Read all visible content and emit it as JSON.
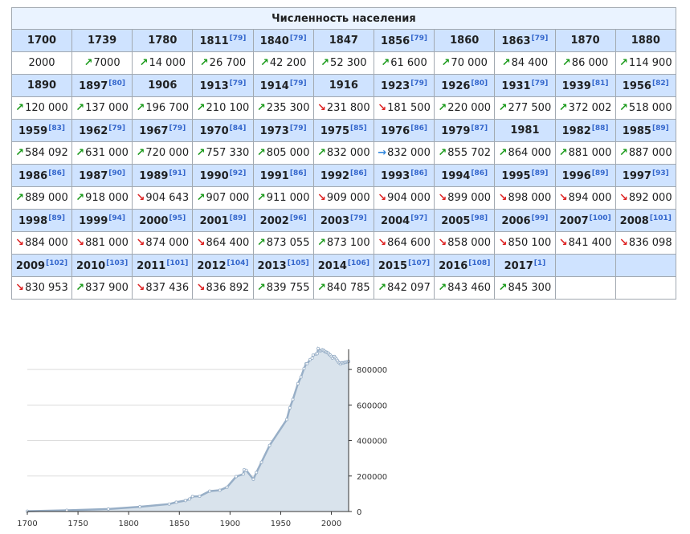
{
  "table": {
    "title": "Численность населения",
    "entries": [
      {
        "year": "1700",
        "ref": "",
        "value": "2000",
        "trend": ""
      },
      {
        "year": "1739",
        "ref": "",
        "value": "7000",
        "trend": "up"
      },
      {
        "year": "1780",
        "ref": "",
        "value": "14 000",
        "trend": "up"
      },
      {
        "year": "1811",
        "ref": "[79]",
        "value": "26 700",
        "trend": "up"
      },
      {
        "year": "1840",
        "ref": "[79]",
        "value": "42 200",
        "trend": "up"
      },
      {
        "year": "1847",
        "ref": "",
        "value": "52 300",
        "trend": "up"
      },
      {
        "year": "1856",
        "ref": "[79]",
        "value": "61 600",
        "trend": "up"
      },
      {
        "year": "1860",
        "ref": "",
        "value": "70 000",
        "trend": "up"
      },
      {
        "year": "1863",
        "ref": "[79]",
        "value": "84 400",
        "trend": "up"
      },
      {
        "year": "1870",
        "ref": "",
        "value": "86 000",
        "trend": "up"
      },
      {
        "year": "1880",
        "ref": "",
        "value": "114 900",
        "trend": "up"
      },
      {
        "year": "1890",
        "ref": "",
        "value": "120 000",
        "trend": "up"
      },
      {
        "year": "1897",
        "ref": "[80]",
        "value": "137 000",
        "trend": "up"
      },
      {
        "year": "1906",
        "ref": "",
        "value": "196 700",
        "trend": "up"
      },
      {
        "year": "1913",
        "ref": "[79]",
        "value": "210 100",
        "trend": "up"
      },
      {
        "year": "1914",
        "ref": "[79]",
        "value": "235 300",
        "trend": "up"
      },
      {
        "year": "1916",
        "ref": "",
        "value": "231 800",
        "trend": "down"
      },
      {
        "year": "1923",
        "ref": "[79]",
        "value": "181 500",
        "trend": "down"
      },
      {
        "year": "1926",
        "ref": "[80]",
        "value": "220 000",
        "trend": "up"
      },
      {
        "year": "1931",
        "ref": "[79]",
        "value": "277 500",
        "trend": "up"
      },
      {
        "year": "1939",
        "ref": "[81]",
        "value": "372 002",
        "trend": "up"
      },
      {
        "year": "1956",
        "ref": "[82]",
        "value": "518 000",
        "trend": "up"
      },
      {
        "year": "1959",
        "ref": "[83]",
        "value": "584 092",
        "trend": "up"
      },
      {
        "year": "1962",
        "ref": "[79]",
        "value": "631 000",
        "trend": "up"
      },
      {
        "year": "1967",
        "ref": "[79]",
        "value": "720 000",
        "trend": "up"
      },
      {
        "year": "1970",
        "ref": "[84]",
        "value": "757 330",
        "trend": "up"
      },
      {
        "year": "1973",
        "ref": "[79]",
        "value": "805 000",
        "trend": "up"
      },
      {
        "year": "1975",
        "ref": "[85]",
        "value": "832 000",
        "trend": "up"
      },
      {
        "year": "1976",
        "ref": "[86]",
        "value": "832 000",
        "trend": "flat"
      },
      {
        "year": "1979",
        "ref": "[87]",
        "value": "855 702",
        "trend": "up"
      },
      {
        "year": "1981",
        "ref": "",
        "value": "864 000",
        "trend": "up"
      },
      {
        "year": "1982",
        "ref": "[88]",
        "value": "881 000",
        "trend": "up"
      },
      {
        "year": "1985",
        "ref": "[89]",
        "value": "887 000",
        "trend": "up"
      },
      {
        "year": "1986",
        "ref": "[86]",
        "value": "889 000",
        "trend": "up"
      },
      {
        "year": "1987",
        "ref": "[90]",
        "value": "918 000",
        "trend": "up"
      },
      {
        "year": "1989",
        "ref": "[91]",
        "value": "904 643",
        "trend": "down"
      },
      {
        "year": "1990",
        "ref": "[92]",
        "value": "907 000",
        "trend": "up"
      },
      {
        "year": "1991",
        "ref": "[86]",
        "value": "911 000",
        "trend": "up"
      },
      {
        "year": "1992",
        "ref": "[86]",
        "value": "909 000",
        "trend": "down"
      },
      {
        "year": "1993",
        "ref": "[86]",
        "value": "904 000",
        "trend": "down"
      },
      {
        "year": "1994",
        "ref": "[86]",
        "value": "899 000",
        "trend": "down"
      },
      {
        "year": "1995",
        "ref": "[89]",
        "value": "898 000",
        "trend": "down"
      },
      {
        "year": "1996",
        "ref": "[89]",
        "value": "894 000",
        "trend": "down"
      },
      {
        "year": "1997",
        "ref": "[93]",
        "value": "892 000",
        "trend": "down"
      },
      {
        "year": "1998",
        "ref": "[89]",
        "value": "884 000",
        "trend": "down"
      },
      {
        "year": "1999",
        "ref": "[94]",
        "value": "881 000",
        "trend": "down"
      },
      {
        "year": "2000",
        "ref": "[95]",
        "value": "874 000",
        "trend": "down"
      },
      {
        "year": "2001",
        "ref": "[89]",
        "value": "864 400",
        "trend": "down"
      },
      {
        "year": "2002",
        "ref": "[96]",
        "value": "873 055",
        "trend": "up"
      },
      {
        "year": "2003",
        "ref": "[79]",
        "value": "873 100",
        "trend": "up"
      },
      {
        "year": "2004",
        "ref": "[97]",
        "value": "864 600",
        "trend": "down"
      },
      {
        "year": "2005",
        "ref": "[98]",
        "value": "858 000",
        "trend": "down"
      },
      {
        "year": "2006",
        "ref": "[99]",
        "value": "850 100",
        "trend": "down"
      },
      {
        "year": "2007",
        "ref": "[100]",
        "value": "841 400",
        "trend": "down"
      },
      {
        "year": "2008",
        "ref": "[101]",
        "value": "836 098",
        "trend": "down"
      },
      {
        "year": "2009",
        "ref": "[102]",
        "value": "830 953",
        "trend": "down"
      },
      {
        "year": "2010",
        "ref": "[103]",
        "value": "837 900",
        "trend": "up"
      },
      {
        "year": "2011",
        "ref": "[101]",
        "value": "837 436",
        "trend": "down"
      },
      {
        "year": "2012",
        "ref": "[104]",
        "value": "836 892",
        "trend": "down"
      },
      {
        "year": "2013",
        "ref": "[105]",
        "value": "839 755",
        "trend": "up"
      },
      {
        "year": "2014",
        "ref": "[106]",
        "value": "840 785",
        "trend": "up"
      },
      {
        "year": "2015",
        "ref": "[107]",
        "value": "842 097",
        "trend": "up"
      },
      {
        "year": "2016",
        "ref": "[108]",
        "value": "843 460",
        "trend": "up"
      },
      {
        "year": "2017",
        "ref": "[1]",
        "value": "845 300",
        "trend": "up"
      }
    ],
    "trend_glyphs": {
      "up": "↗",
      "down": "↘",
      "flat": "→"
    },
    "colors": {
      "up": "#1a9a1a",
      "down": "#dd2222",
      "flat": "#3388dd",
      "header_bg": "#cfe3ff",
      "title_bg": "#eaf3ff",
      "border": "#a2a9b1"
    }
  },
  "chart_data": {
    "type": "area",
    "x": [
      1700,
      1739,
      1780,
      1811,
      1840,
      1847,
      1856,
      1860,
      1863,
      1870,
      1880,
      1890,
      1897,
      1906,
      1913,
      1914,
      1916,
      1923,
      1926,
      1931,
      1939,
      1956,
      1959,
      1962,
      1967,
      1970,
      1973,
      1975,
      1976,
      1979,
      1981,
      1982,
      1985,
      1986,
      1987,
      1989,
      1990,
      1991,
      1992,
      1993,
      1994,
      1995,
      1996,
      1997,
      1998,
      1999,
      2000,
      2001,
      2002,
      2003,
      2004,
      2005,
      2006,
      2007,
      2008,
      2009,
      2010,
      2011,
      2012,
      2013,
      2014,
      2015,
      2016,
      2017
    ],
    "y": [
      2000,
      7000,
      14000,
      26700,
      42200,
      52300,
      61600,
      70000,
      84400,
      86000,
      114900,
      120000,
      137000,
      196700,
      210100,
      235300,
      231800,
      181500,
      220000,
      277500,
      372002,
      518000,
      584092,
      631000,
      720000,
      757330,
      805000,
      832000,
      832000,
      855702,
      864000,
      881000,
      887000,
      889000,
      918000,
      904643,
      907000,
      911000,
      909000,
      904000,
      899000,
      898000,
      894000,
      892000,
      884000,
      881000,
      874000,
      864400,
      873055,
      873100,
      864600,
      858000,
      850100,
      841400,
      836098,
      830953,
      837900,
      837436,
      836892,
      839755,
      840785,
      842097,
      843460,
      845300
    ],
    "xlim": [
      1700,
      2017
    ],
    "ylim": [
      0,
      900000
    ],
    "x_ticks": [
      "1700",
      "1750",
      "1800",
      "1850",
      "1900",
      "1950",
      "2000"
    ],
    "y_ticks": [
      "0",
      "200000",
      "400000",
      "600000",
      "800000"
    ],
    "grid": "horizontal",
    "colors": {
      "fill": "#d9e3ec",
      "line": "#98afc7",
      "point": "#ffffff",
      "grid": "#dddddd",
      "axis": "#333333"
    }
  }
}
